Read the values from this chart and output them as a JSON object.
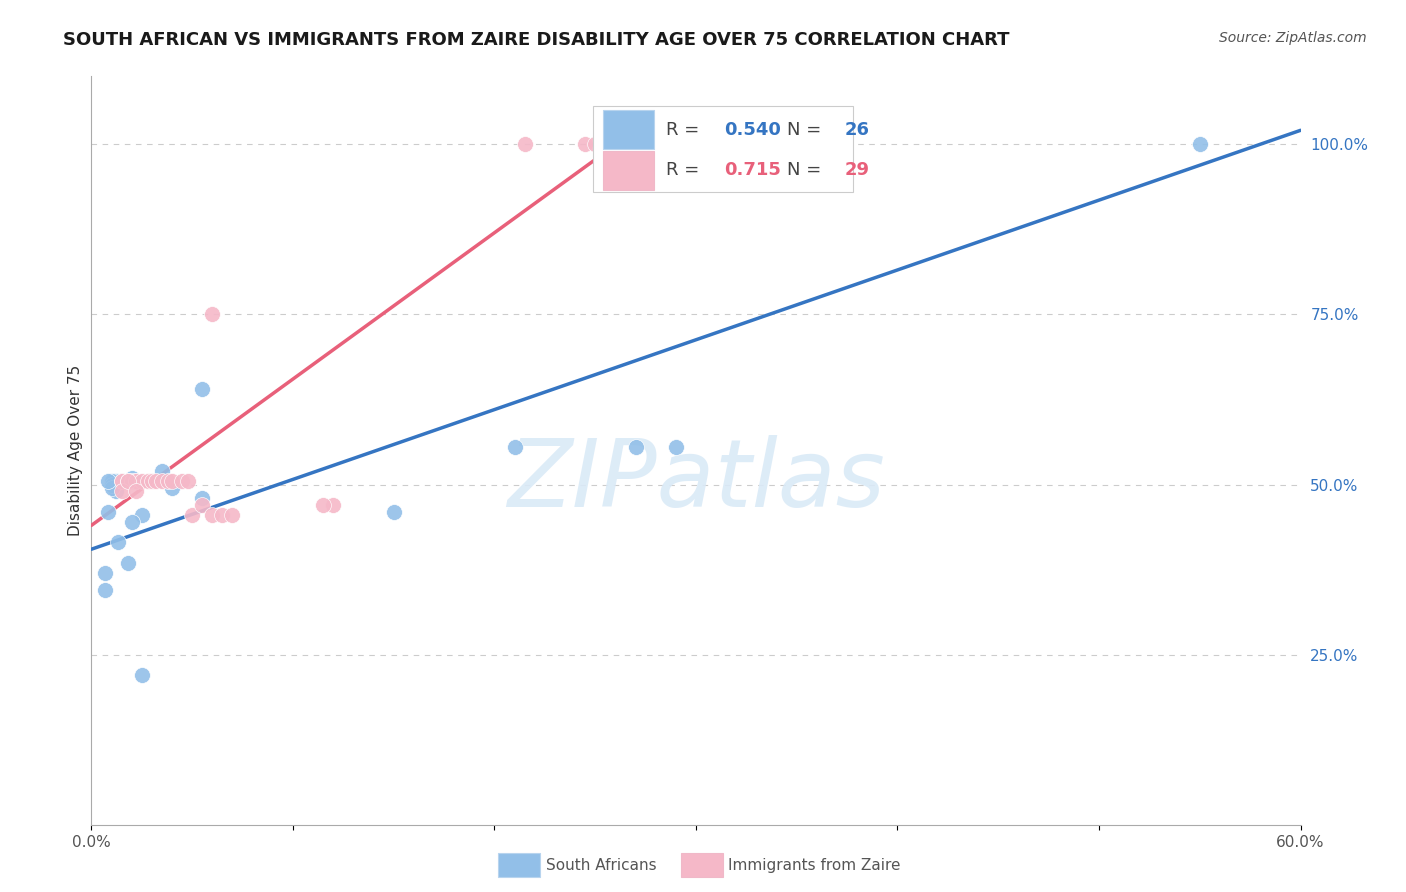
{
  "title": "SOUTH AFRICAN VS IMMIGRANTS FROM ZAIRE DISABILITY AGE OVER 75 CORRELATION CHART",
  "source": "Source: ZipAtlas.com",
  "ylabel": "Disability Age Over 75",
  "xlim": [
    0.0,
    0.6
  ],
  "ylim": [
    0.0,
    1.1
  ],
  "xticks": [
    0.0,
    0.1,
    0.2,
    0.3,
    0.4,
    0.5,
    0.6
  ],
  "xticklabels": [
    "0.0%",
    "",
    "",
    "",
    "",
    "",
    "60.0%"
  ],
  "ytick_right_values": [
    1.0,
    0.75,
    0.5,
    0.25
  ],
  "ytick_right_labels": [
    "100.0%",
    "75.0%",
    "50.0%",
    "25.0%"
  ],
  "R_blue": "0.540",
  "N_blue": "26",
  "R_pink": "0.715",
  "N_pink": "29",
  "blue_dot_color": "#92bfe8",
  "pink_dot_color": "#f5b8c8",
  "blue_line_color": "#3575c2",
  "pink_line_color": "#e8607a",
  "legend_border_color": "#cccccc",
  "grid_color": "#cccccc",
  "background_color": "#ffffff",
  "watermark": "ZIPatlas",
  "watermark_color": "#daeaf7",
  "title_color": "#1a1a1a",
  "source_color": "#555555",
  "right_tick_color": "#3575c2",
  "bottom_label_color": "#555555",
  "title_fontsize": 13,
  "source_fontsize": 10,
  "tick_fontsize": 11,
  "legend_fontsize": 13,
  "ylabel_fontsize": 11,
  "blue_scatter_x": [
    0.055,
    0.21,
    0.27,
    0.29,
    0.055,
    0.04,
    0.035,
    0.025,
    0.02,
    0.02,
    0.018,
    0.015,
    0.012,
    0.012,
    0.01,
    0.01,
    0.01,
    0.008,
    0.008,
    0.007,
    0.007,
    0.013,
    0.018,
    0.025,
    0.15,
    0.55
  ],
  "blue_scatter_y": [
    0.64,
    0.555,
    0.555,
    0.555,
    0.48,
    0.495,
    0.52,
    0.455,
    0.445,
    0.51,
    0.505,
    0.505,
    0.505,
    0.49,
    0.505,
    0.5,
    0.495,
    0.505,
    0.46,
    0.37,
    0.345,
    0.415,
    0.385,
    0.22,
    0.46,
    1.0
  ],
  "pink_scatter_x": [
    0.215,
    0.245,
    0.25,
    0.06,
    0.015,
    0.015,
    0.018,
    0.02,
    0.022,
    0.022,
    0.025,
    0.028,
    0.03,
    0.032,
    0.035,
    0.038,
    0.04,
    0.045,
    0.048,
    0.05,
    0.055,
    0.06,
    0.065,
    0.07,
    0.12,
    0.115,
    0.015,
    0.018,
    0.022
  ],
  "pink_scatter_y": [
    1.0,
    1.0,
    1.0,
    0.75,
    0.505,
    0.505,
    0.505,
    0.505,
    0.505,
    0.505,
    0.505,
    0.505,
    0.505,
    0.505,
    0.505,
    0.505,
    0.505,
    0.505,
    0.505,
    0.455,
    0.47,
    0.455,
    0.455,
    0.455,
    0.47,
    0.47,
    0.49,
    0.505,
    0.49
  ],
  "blue_line_x": [
    0.0,
    0.6
  ],
  "blue_line_y": [
    0.405,
    1.02
  ],
  "pink_line_x": [
    0.0,
    0.27
  ],
  "pink_line_y": [
    0.44,
    1.02
  ]
}
